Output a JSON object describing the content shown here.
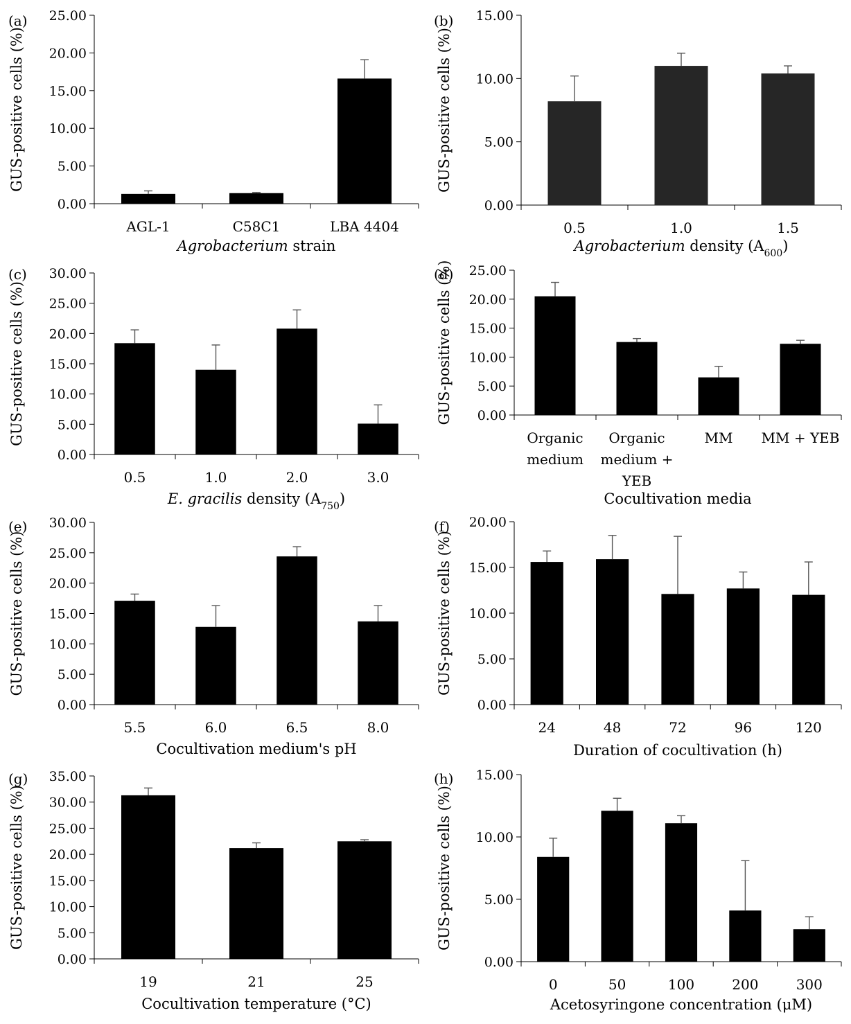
{
  "chart_data": [
    {
      "panel": "(a)",
      "type": "bar",
      "categories": [
        "AGL-1",
        "C58C1",
        "LBA 4404"
      ],
      "values": [
        1.3,
        1.4,
        16.6
      ],
      "errors": [
        0.4,
        0.1,
        2.5
      ],
      "ylim": [
        0,
        25
      ],
      "yticks": [
        "0.00",
        "5.00",
        "10.00",
        "15.00",
        "20.00",
        "25.00"
      ],
      "ylabel": "GUS-positive cells (%)",
      "xlabel": [
        {
          "t": "Agrobacterium",
          "i": true
        },
        {
          "t": " strain"
        }
      ],
      "bar_color": "#000000"
    },
    {
      "panel": "(b)",
      "type": "bar",
      "categories": [
        "0.5",
        "1.0",
        "1.5"
      ],
      "values": [
        8.2,
        11.0,
        10.4
      ],
      "errors": [
        2.0,
        1.0,
        0.6
      ],
      "ylim": [
        0,
        15
      ],
      "yticks": [
        "0.00",
        "5.00",
        "10.00",
        "15.00"
      ],
      "ylabel": "GUS-positive cells (%)",
      "xlabel": [
        {
          "t": "Agrobacterium",
          "i": true
        },
        {
          "t": " density (A"
        },
        {
          "t": "600",
          "sub": true
        },
        {
          "t": ")"
        }
      ],
      "bar_color": "#262626"
    },
    {
      "panel": "(c)",
      "type": "bar",
      "categories": [
        "0.5",
        "1.0",
        "2.0",
        "3.0"
      ],
      "values": [
        18.4,
        14.0,
        20.8,
        5.1
      ],
      "errors": [
        2.2,
        4.1,
        3.1,
        3.1
      ],
      "ylim": [
        0,
        30
      ],
      "yticks": [
        "0.00",
        "5.00",
        "10.00",
        "15.00",
        "20.00",
        "25.00",
        "30.00"
      ],
      "ylabel": "GUS-positive cells (%)",
      "xlabel": [
        {
          "t": "E. gracilis",
          "i": true
        },
        {
          "t": " density (A"
        },
        {
          "t": "750",
          "sub": true
        },
        {
          "t": ")"
        }
      ],
      "bar_color": "#000000"
    },
    {
      "panel": "(d)",
      "type": "bar",
      "categories": [
        [
          "Organic",
          "medium"
        ],
        [
          "Organic",
          "medium +",
          "YEB"
        ],
        [
          "MM"
        ],
        [
          "MM + YEB"
        ]
      ],
      "values": [
        20.5,
        12.6,
        6.5,
        12.3
      ],
      "errors": [
        2.4,
        0.6,
        1.9,
        0.6
      ],
      "ylim": [
        0,
        25
      ],
      "yticks": [
        "0.00",
        "5.00",
        "10.00",
        "15.00",
        "20.00",
        "25.00"
      ],
      "ylabel": "GUS-positive cells (%)",
      "xlabel": [
        {
          "t": "Cocultivation media"
        }
      ],
      "bar_color": "#000000"
    },
    {
      "panel": "(e)",
      "type": "bar",
      "categories": [
        "5.5",
        "6.0",
        "6.5",
        "8.0"
      ],
      "values": [
        17.1,
        12.8,
        24.4,
        13.7
      ],
      "errors": [
        1.1,
        3.5,
        1.6,
        2.6
      ],
      "ylim": [
        0,
        30
      ],
      "yticks": [
        "0.00",
        "5.00",
        "10.00",
        "15.00",
        "20.00",
        "25.00",
        "30.00"
      ],
      "ylabel": "GUS-positive cells (%)",
      "xlabel": [
        {
          "t": "Cocultivation medium's pH"
        }
      ],
      "bar_color": "#000000"
    },
    {
      "panel": "(f)",
      "type": "bar",
      "categories": [
        "24",
        "48",
        "72",
        "96",
        "120"
      ],
      "values": [
        15.6,
        15.9,
        12.1,
        12.7,
        12.0
      ],
      "errors": [
        1.2,
        2.6,
        6.3,
        1.8,
        3.6
      ],
      "ylim": [
        0,
        20
      ],
      "yticks": [
        "0.00",
        "5.00",
        "10.00",
        "15.00",
        "20.00"
      ],
      "ylabel": "GUS-positive cells (%)",
      "xlabel": [
        {
          "t": "Duration of cocultivation (h)"
        }
      ],
      "bar_color": "#000000"
    },
    {
      "panel": "(g)",
      "type": "bar",
      "categories": [
        "19",
        "21",
        "25"
      ],
      "values": [
        31.3,
        21.2,
        22.5
      ],
      "errors": [
        1.4,
        1.0,
        0.3
      ],
      "ylim": [
        0,
        35
      ],
      "yticks": [
        "0.00",
        "5.00",
        "10.00",
        "15.00",
        "20.00",
        "25.00",
        "30.00",
        "35.00"
      ],
      "ylabel": "GUS-positive cells (%)",
      "xlabel": [
        {
          "t": "Cocultivation temperature (°C)"
        }
      ],
      "bar_color": "#000000"
    },
    {
      "panel": "(h)",
      "type": "bar",
      "categories": [
        "0",
        "50",
        "100",
        "200",
        "300"
      ],
      "values": [
        8.4,
        12.1,
        11.1,
        4.1,
        2.6
      ],
      "errors": [
        1.5,
        1.0,
        0.6,
        4.0,
        1.0
      ],
      "ylim": [
        0,
        15
      ],
      "yticks": [
        "0.00",
        "5.00",
        "10.00",
        "15.00"
      ],
      "ylabel": "GUS-positive cells (%)",
      "xlabel": [
        {
          "t": "Acetosyringone concentration (μM)"
        }
      ],
      "bar_color": "#000000"
    }
  ]
}
